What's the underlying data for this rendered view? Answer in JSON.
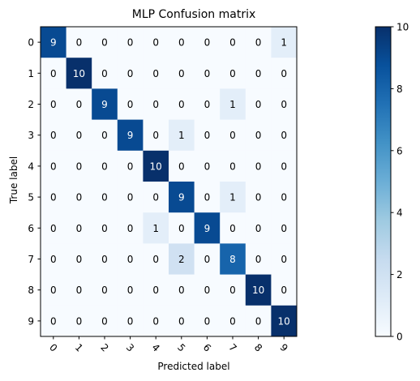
{
  "chart_data": {
    "type": "heatmap",
    "title": "MLP Confusion matrix",
    "xlabel": "Predicted label",
    "ylabel": "True label",
    "x_categories": [
      "0",
      "1",
      "2",
      "3",
      "4",
      "5",
      "6",
      "7",
      "8",
      "9"
    ],
    "y_categories": [
      "0",
      "1",
      "2",
      "3",
      "4",
      "5",
      "6",
      "7",
      "8",
      "9"
    ],
    "values": [
      [
        9,
        0,
        0,
        0,
        0,
        0,
        0,
        0,
        0,
        1
      ],
      [
        0,
        10,
        0,
        0,
        0,
        0,
        0,
        0,
        0,
        0
      ],
      [
        0,
        0,
        9,
        0,
        0,
        0,
        0,
        1,
        0,
        0
      ],
      [
        0,
        0,
        0,
        9,
        0,
        1,
        0,
        0,
        0,
        0
      ],
      [
        0,
        0,
        0,
        0,
        10,
        0,
        0,
        0,
        0,
        0
      ],
      [
        0,
        0,
        0,
        0,
        0,
        9,
        0,
        1,
        0,
        0
      ],
      [
        0,
        0,
        0,
        0,
        1,
        0,
        9,
        0,
        0,
        0
      ],
      [
        0,
        0,
        0,
        0,
        0,
        2,
        0,
        8,
        0,
        0
      ],
      [
        0,
        0,
        0,
        0,
        0,
        0,
        0,
        0,
        10,
        0
      ],
      [
        0,
        0,
        0,
        0,
        0,
        0,
        0,
        0,
        0,
        10
      ]
    ],
    "colorbar": {
      "range": [
        0,
        10
      ],
      "ticks": [
        "0",
        "2",
        "4",
        "6",
        "8",
        "10"
      ],
      "colormap": "Blues"
    },
    "grid": false
  }
}
